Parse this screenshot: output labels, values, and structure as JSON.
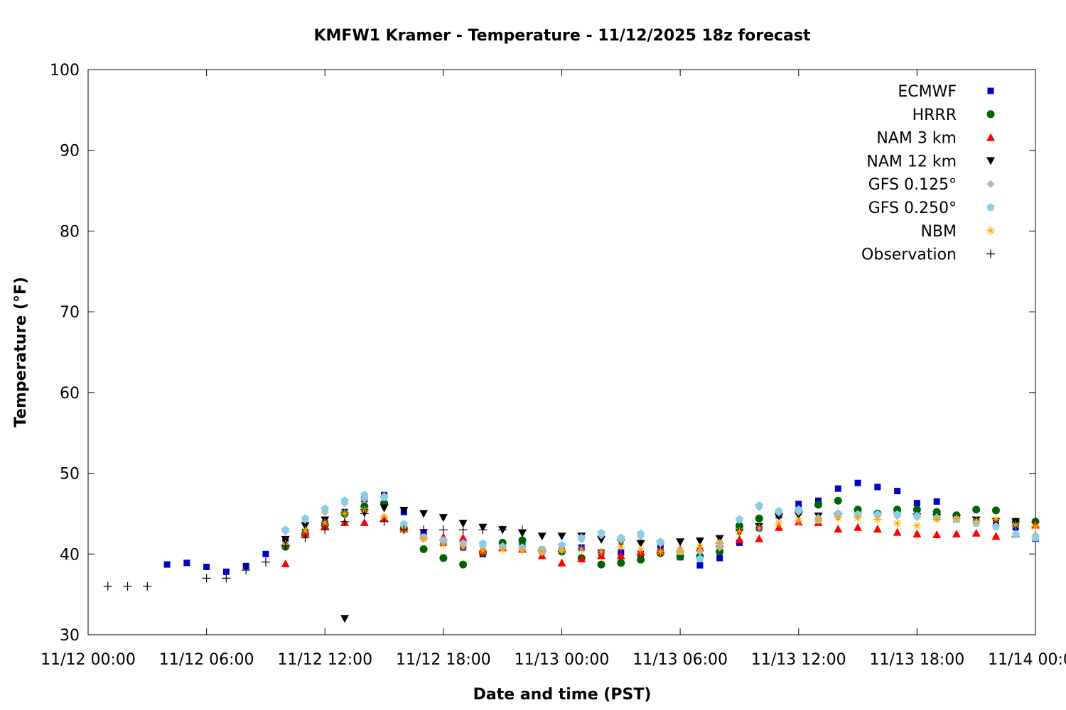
{
  "chart_data": {
    "type": "scatter",
    "title": "KMFW1 Kramer - Temperature - 11/12/2025 18z forecast",
    "xlabel": "Date and time (PST)",
    "ylabel": "Temperature (°F)",
    "x_start": "11/12/2025 00:00",
    "x_unit": "hours since 11/12 00:00",
    "xlim": [
      0,
      48
    ],
    "ylim": [
      30,
      100
    ],
    "x_ticks": [
      {
        "x": 0,
        "label": "11/12 00:00"
      },
      {
        "x": 6,
        "label": "11/12 06:00"
      },
      {
        "x": 12,
        "label": "11/12 12:00"
      },
      {
        "x": 18,
        "label": "11/12 18:00"
      },
      {
        "x": 24,
        "label": "11/13 00:00"
      },
      {
        "x": 30,
        "label": "11/13 06:00"
      },
      {
        "x": 36,
        "label": "11/13 12:00"
      },
      {
        "x": 42,
        "label": "11/13 18:00"
      },
      {
        "x": 48,
        "label": "11/14 00:00"
      }
    ],
    "y_ticks": [
      30,
      40,
      50,
      60,
      70,
      80,
      90,
      100
    ],
    "grid": false,
    "legend_position": "top-right",
    "series": [
      {
        "name": "ECMWF",
        "marker": "square",
        "color": "#0000cc",
        "x": [
          4,
          5,
          6,
          7,
          8,
          9,
          10,
          11,
          12,
          13,
          14,
          15,
          16,
          17,
          18,
          19,
          20,
          21,
          22,
          23,
          24,
          25,
          26,
          27,
          28,
          29,
          30,
          31,
          32,
          33,
          34,
          35,
          36,
          37,
          38,
          39,
          40,
          41,
          42,
          43,
          44,
          45,
          46,
          47,
          48
        ],
        "y": [
          38.7,
          38.9,
          38.4,
          37.8,
          38.5,
          40.0,
          41.8,
          42.7,
          43.8,
          45.2,
          46.8,
          47.3,
          45.2,
          42.7,
          41.4,
          40.8,
          40.0,
          40.8,
          41.0,
          40.4,
          40.4,
          40.8,
          40.2,
          40.2,
          40.0,
          40.8,
          39.6,
          38.6,
          39.5,
          41.4,
          43.2,
          44.8,
          46.2,
          46.6,
          48.1,
          48.8,
          48.3,
          47.8,
          46.3,
          46.5,
          44.3,
          44.1,
          44.0,
          43.3,
          41.9
        ]
      },
      {
        "name": "HRRR",
        "marker": "circle",
        "color": "#006400",
        "x": [
          10,
          11,
          12,
          13,
          14,
          15,
          16,
          17,
          18,
          19,
          20,
          21,
          22,
          23,
          24,
          25,
          26,
          27,
          28,
          29,
          30,
          31,
          32,
          33,
          34,
          35,
          36,
          37,
          38,
          39,
          40,
          41,
          42,
          43,
          44,
          45,
          46,
          47,
          48
        ],
        "y": [
          40.9,
          42.5,
          43.6,
          45.0,
          45.9,
          46.3,
          43.2,
          40.6,
          39.5,
          38.7,
          40.2,
          41.4,
          41.7,
          40.5,
          40.3,
          39.5,
          38.7,
          38.9,
          39.3,
          40.1,
          39.7,
          39.7,
          40.3,
          43.5,
          44.4,
          45.0,
          45.2,
          46.1,
          46.6,
          45.5,
          45.0,
          45.5,
          45.5,
          45.2,
          44.8,
          45.5,
          45.4,
          44.0,
          44.0
        ]
      },
      {
        "name": "NAM 3 km",
        "marker": "triangle-up",
        "color": "#ff0000",
        "x": [
          10,
          11,
          12,
          13,
          14,
          15,
          16,
          17,
          18,
          19,
          20,
          21,
          22,
          23,
          24,
          25,
          26,
          27,
          28,
          29,
          30,
          31,
          32,
          33,
          34,
          35,
          36,
          37,
          38,
          39,
          40,
          41,
          42,
          43,
          44,
          45,
          46,
          47,
          48
        ],
        "y": [
          38.8,
          42.6,
          43.5,
          43.9,
          43.9,
          44.5,
          43.1,
          42.3,
          42.1,
          42.0,
          40.3,
          40.8,
          40.6,
          39.8,
          38.9,
          39.4,
          39.8,
          39.8,
          40.2,
          40.4,
          40.6,
          40.8,
          41.3,
          41.8,
          41.9,
          43.3,
          44.0,
          43.9,
          43.1,
          43.3,
          43.1,
          42.7,
          42.5,
          42.4,
          42.5,
          42.6,
          42.2,
          42.5,
          43.6
        ]
      },
      {
        "name": "NAM 12 km",
        "marker": "triangle-down",
        "color": "#000000",
        "x": [
          10,
          11,
          12,
          13,
          14,
          15,
          16,
          17,
          18,
          19,
          20,
          21,
          22,
          23,
          24,
          25,
          26,
          27,
          28,
          29,
          30,
          31,
          32,
          33,
          34,
          35,
          36,
          37,
          38,
          39,
          40,
          41,
          42,
          43,
          44,
          45,
          46,
          47
        ],
        "y": [
          41.8,
          43.5,
          44.2,
          32.0,
          45.1,
          45.7,
          45.4,
          45.0,
          44.5,
          43.8,
          43.3,
          43.0,
          42.6,
          42.2,
          42.2,
          42.2,
          41.8,
          41.4,
          41.3,
          41.2,
          41.5,
          41.6,
          41.9,
          42.7,
          43.4,
          44.6,
          44.8,
          44.7,
          44.6,
          44.7,
          44.7,
          44.7,
          44.6,
          44.5,
          44.4,
          44.2,
          44.0,
          44.0
        ]
      },
      {
        "name": "GFS 0.125°",
        "marker": "diamond",
        "color": "#b4b4b4",
        "x": [
          10,
          11,
          12,
          13,
          14,
          15,
          16,
          17,
          18,
          19,
          20,
          21,
          22,
          23,
          24,
          25,
          26,
          27,
          28,
          29,
          30,
          31,
          32,
          33,
          34,
          35,
          36,
          37,
          38,
          39,
          40,
          41,
          42,
          43,
          44,
          45,
          46,
          47,
          48
        ],
        "y": [
          42.8,
          44.2,
          45.2,
          46.3,
          46.8,
          47.2,
          43.6,
          41.9,
          41.5,
          41.1,
          41.0,
          40.8,
          40.6,
          40.2,
          40.5,
          41.8,
          42.3,
          41.7,
          42.2,
          41.3,
          40.4,
          40.3,
          40.8,
          44.2,
          45.8,
          45.1,
          45.2,
          44.5,
          44.7,
          44.7,
          44.8,
          44.7,
          44.6,
          44.4,
          44.3,
          43.9,
          43.4,
          42.5,
          42.3
        ]
      },
      {
        "name": "GFS 0.250°",
        "marker": "pentagon",
        "color": "#87ceeb",
        "x": [
          10,
          11,
          12,
          13,
          14,
          15,
          16,
          17,
          18,
          19,
          20,
          21,
          22,
          23,
          24,
          25,
          26,
          27,
          28,
          29,
          30,
          31,
          32,
          33,
          34,
          35,
          36,
          37,
          38,
          39,
          40,
          41,
          42,
          43,
          44,
          45,
          46,
          47,
          48
        ],
        "y": [
          43.0,
          44.4,
          45.6,
          46.6,
          47.3,
          47.0,
          43.7,
          42.1,
          41.7,
          41.3,
          41.3,
          40.9,
          40.8,
          40.5,
          41.1,
          42.0,
          42.6,
          42.0,
          42.5,
          41.5,
          40.3,
          39.4,
          41.3,
          44.3,
          46.0,
          45.3,
          45.5,
          44.2,
          45.0,
          44.9,
          44.9,
          44.9,
          44.7,
          44.5,
          44.3,
          43.8,
          43.4,
          42.4,
          42.0
        ]
      },
      {
        "name": "NBM",
        "marker": "star",
        "color": "#ffa500",
        "x": [
          10,
          11,
          12,
          13,
          14,
          15,
          16,
          17,
          18,
          19,
          20,
          21,
          22,
          23,
          24,
          25,
          26,
          27,
          28,
          29,
          30,
          31,
          32,
          33,
          34,
          35,
          36,
          37,
          38,
          39,
          40,
          41,
          42,
          43,
          44,
          45,
          46,
          47,
          48
        ],
        "y": [
          41.2,
          42.9,
          43.9,
          45.0,
          45.4,
          44.6,
          43.0,
          41.9,
          41.2,
          40.8,
          40.4,
          40.6,
          40.5,
          40.3,
          40.5,
          40.6,
          40.3,
          40.9,
          40.5,
          40.3,
          40.4,
          40.8,
          41.3,
          42.8,
          43.2,
          43.8,
          44.1,
          44.2,
          44.5,
          44.5,
          44.3,
          43.8,
          43.5,
          44.3,
          44.4,
          44.1,
          44.3,
          43.6,
          43.4
        ]
      },
      {
        "name": "Observation",
        "marker": "plus",
        "color": "#000000",
        "x": [
          1,
          2,
          3,
          6,
          7,
          8,
          9,
          10,
          11,
          12,
          13,
          14,
          15,
          16,
          17,
          18,
          19,
          20,
          21,
          22
        ],
        "y": [
          36.0,
          36.0,
          36.0,
          37.0,
          37.0,
          38.0,
          39.0,
          41.0,
          42.0,
          43.0,
          44.0,
          45.0,
          44.0,
          43.0,
          43.0,
          43.0,
          43.0,
          43.0,
          43.0,
          43.0
        ]
      }
    ]
  }
}
